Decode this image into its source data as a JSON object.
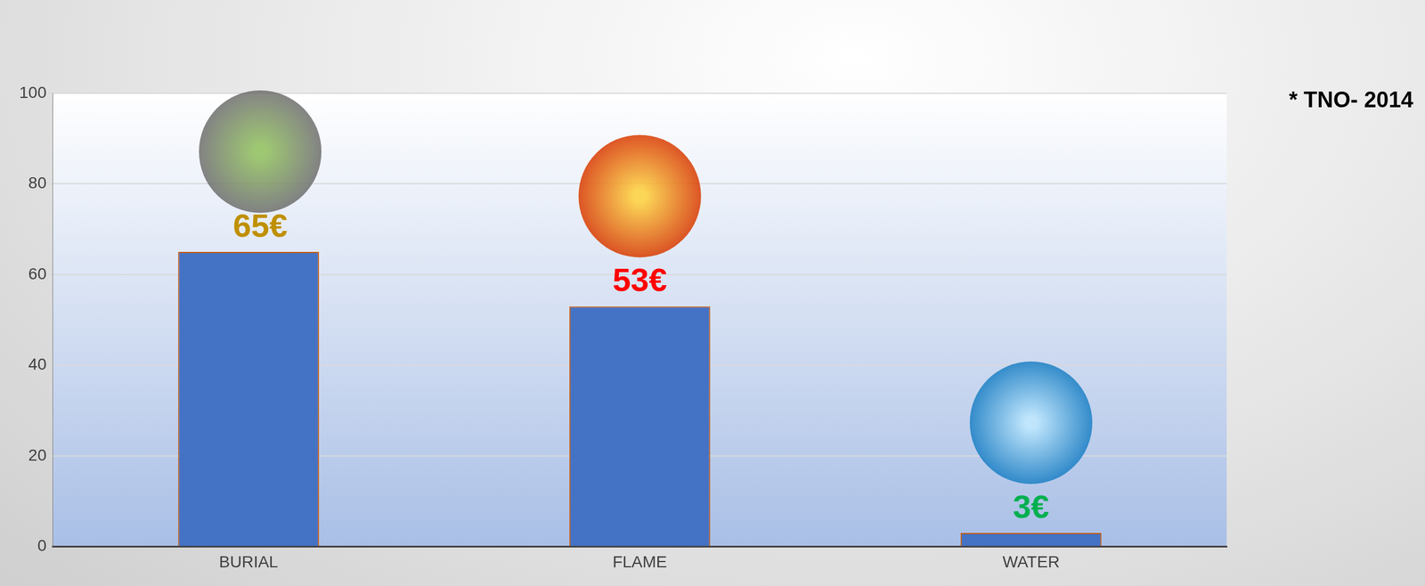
{
  "chart_data": {
    "type": "bar",
    "categories": [
      "BURIAL",
      "FLAME",
      "WATER"
    ],
    "values": [
      65,
      53,
      3
    ],
    "value_labels": [
      "65€",
      "53€",
      "3€"
    ],
    "data_labels": true,
    "color": "#4472c4",
    "ylim": [
      0,
      100
    ],
    "yticks": [
      0,
      20,
      40,
      60,
      80,
      100
    ],
    "grid": true,
    "annotation": "* TNO- 2014"
  }
}
